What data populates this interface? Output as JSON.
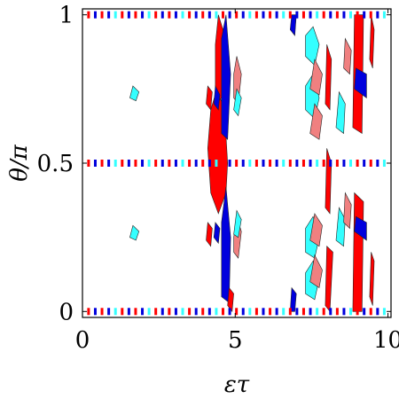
{
  "chart_data": {
    "type": "contour",
    "title": "",
    "xlabel": "ετ",
    "ylabel": "θ/π",
    "xlim": [
      0,
      10.1
    ],
    "ylim": [
      -0.02,
      1.02
    ],
    "x_ticks": [
      {
        "value": 0,
        "label": "0"
      },
      {
        "value": 5,
        "label": "5"
      },
      {
        "value": 10,
        "label": "10"
      }
    ],
    "y_ticks": [
      {
        "value": 0,
        "label": "0"
      },
      {
        "value": 0.5,
        "label": "0.5"
      },
      {
        "value": 1,
        "label": "1"
      }
    ],
    "grid": false,
    "legend": "none",
    "colors": {
      "red": "#ff0000",
      "blue": "#0000dd",
      "cyan": "#33ffff",
      "pink": "#f08080",
      "outline": "#222222"
    },
    "regions": [
      {
        "color": "red",
        "points": [
          [
            4.2,
            0.4
          ],
          [
            4.45,
            0.33
          ],
          [
            4.7,
            0.4
          ],
          [
            4.75,
            0.5
          ],
          [
            4.65,
            0.68
          ],
          [
            4.4,
            0.75
          ],
          [
            4.2,
            0.68
          ],
          [
            4.1,
            0.55
          ]
        ]
      },
      {
        "color": "red",
        "points": [
          [
            4.35,
            0.7
          ],
          [
            4.55,
            0.72
          ],
          [
            4.6,
            0.95
          ],
          [
            4.45,
            1.0
          ],
          [
            4.35,
            0.9
          ]
        ]
      },
      {
        "color": "blue",
        "points": [
          [
            4.55,
            0.05
          ],
          [
            4.8,
            0.03
          ],
          [
            4.85,
            0.25
          ],
          [
            4.7,
            0.42
          ],
          [
            4.55,
            0.3
          ]
        ]
      },
      {
        "color": "blue",
        "points": [
          [
            4.55,
            0.6
          ],
          [
            4.75,
            0.58
          ],
          [
            4.85,
            0.8
          ],
          [
            4.7,
            1.0
          ],
          [
            4.55,
            0.92
          ]
        ]
      },
      {
        "color": "red",
        "points": [
          [
            4.75,
            0.02
          ],
          [
            4.9,
            0.0
          ],
          [
            4.95,
            0.06
          ],
          [
            4.8,
            0.08
          ]
        ]
      },
      {
        "color": "pink",
        "points": [
          [
            4.95,
            0.72
          ],
          [
            5.1,
            0.7
          ],
          [
            5.2,
            0.8
          ],
          [
            5.05,
            0.86
          ],
          [
            4.95,
            0.8
          ]
        ]
      },
      {
        "color": "pink",
        "points": [
          [
            4.95,
            0.2
          ],
          [
            5.1,
            0.18
          ],
          [
            5.2,
            0.27
          ],
          [
            5.05,
            0.32
          ],
          [
            4.95,
            0.25
          ]
        ]
      },
      {
        "color": "cyan",
        "points": [
          [
            4.95,
            0.68
          ],
          [
            5.1,
            0.66
          ],
          [
            5.2,
            0.72
          ],
          [
            5.05,
            0.75
          ]
        ]
      },
      {
        "color": "cyan",
        "points": [
          [
            4.95,
            0.26
          ],
          [
            5.1,
            0.25
          ],
          [
            5.2,
            0.31
          ],
          [
            5.05,
            0.34
          ]
        ]
      },
      {
        "color": "red",
        "points": [
          [
            7.95,
            0.02
          ],
          [
            8.1,
            0.0
          ],
          [
            8.2,
            0.2
          ],
          [
            8.0,
            0.22
          ]
        ]
      },
      {
        "color": "red",
        "points": [
          [
            7.95,
            0.35
          ],
          [
            8.1,
            0.33
          ],
          [
            8.15,
            0.5
          ],
          [
            8.0,
            0.55
          ]
        ]
      },
      {
        "color": "red",
        "points": [
          [
            7.95,
            0.7
          ],
          [
            8.1,
            0.68
          ],
          [
            8.15,
            0.85
          ],
          [
            8.0,
            0.9
          ]
        ]
      },
      {
        "color": "cyan",
        "points": [
          [
            7.3,
            0.68
          ],
          [
            7.6,
            0.65
          ],
          [
            7.75,
            0.72
          ],
          [
            7.55,
            0.8
          ],
          [
            7.3,
            0.76
          ]
        ]
      },
      {
        "color": "cyan",
        "points": [
          [
            7.3,
            0.86
          ],
          [
            7.6,
            0.83
          ],
          [
            7.75,
            0.9
          ],
          [
            7.55,
            0.96
          ],
          [
            7.3,
            0.93
          ]
        ]
      },
      {
        "color": "cyan",
        "points": [
          [
            7.3,
            0.2
          ],
          [
            7.6,
            0.18
          ],
          [
            7.75,
            0.25
          ],
          [
            7.55,
            0.32
          ],
          [
            7.3,
            0.28
          ]
        ]
      },
      {
        "color": "cyan",
        "points": [
          [
            7.3,
            0.06
          ],
          [
            7.6,
            0.04
          ],
          [
            7.75,
            0.11
          ],
          [
            7.55,
            0.17
          ],
          [
            7.3,
            0.13
          ]
        ]
      },
      {
        "color": "pink",
        "points": [
          [
            7.45,
            0.6
          ],
          [
            7.75,
            0.58
          ],
          [
            7.85,
            0.66
          ],
          [
            7.6,
            0.7
          ]
        ]
      },
      {
        "color": "pink",
        "points": [
          [
            7.45,
            0.75
          ],
          [
            7.75,
            0.73
          ],
          [
            7.85,
            0.8
          ],
          [
            7.6,
            0.85
          ]
        ]
      },
      {
        "color": "pink",
        "points": [
          [
            7.45,
            0.24
          ],
          [
            7.75,
            0.22
          ],
          [
            7.85,
            0.29
          ],
          [
            7.6,
            0.33
          ]
        ]
      },
      {
        "color": "pink",
        "points": [
          [
            7.45,
            0.1
          ],
          [
            7.75,
            0.08
          ],
          [
            7.85,
            0.14
          ],
          [
            7.6,
            0.19
          ]
        ]
      },
      {
        "color": "cyan",
        "points": [
          [
            8.3,
            0.62
          ],
          [
            8.55,
            0.6
          ],
          [
            8.6,
            0.7
          ],
          [
            8.4,
            0.74
          ]
        ]
      },
      {
        "color": "cyan",
        "points": [
          [
            8.3,
            0.24
          ],
          [
            8.55,
            0.22
          ],
          [
            8.6,
            0.31
          ],
          [
            8.4,
            0.35
          ]
        ]
      },
      {
        "color": "pink",
        "points": [
          [
            8.55,
            0.82
          ],
          [
            8.75,
            0.8
          ],
          [
            8.8,
            0.88
          ],
          [
            8.6,
            0.92
          ]
        ]
      },
      {
        "color": "pink",
        "points": [
          [
            8.55,
            0.3
          ],
          [
            8.75,
            0.28
          ],
          [
            8.8,
            0.36
          ],
          [
            8.6,
            0.4
          ]
        ]
      },
      {
        "color": "red",
        "points": [
          [
            8.85,
            0.62
          ],
          [
            9.15,
            0.6
          ],
          [
            9.2,
            1.0
          ],
          [
            8.9,
            1.0
          ]
        ]
      },
      {
        "color": "red",
        "points": [
          [
            8.85,
            0.0
          ],
          [
            9.15,
            0.0
          ],
          [
            9.2,
            0.37
          ],
          [
            8.9,
            0.4
          ]
        ]
      },
      {
        "color": "red",
        "points": [
          [
            9.4,
            0.85
          ],
          [
            9.5,
            0.82
          ],
          [
            9.55,
            0.95
          ],
          [
            9.45,
            1.0
          ]
        ]
      },
      {
        "color": "red",
        "points": [
          [
            9.4,
            0.05
          ],
          [
            9.5,
            0.02
          ],
          [
            9.55,
            0.17
          ],
          [
            9.45,
            0.2
          ]
        ]
      },
      {
        "color": "blue",
        "points": [
          [
            8.9,
            0.75
          ],
          [
            9.3,
            0.72
          ],
          [
            9.3,
            0.8
          ],
          [
            8.95,
            0.82
          ]
        ]
      },
      {
        "color": "blue",
        "points": [
          [
            8.9,
            0.27
          ],
          [
            9.3,
            0.24
          ],
          [
            9.3,
            0.3
          ],
          [
            8.95,
            0.32
          ]
        ]
      },
      {
        "color": "cyan",
        "points": [
          [
            1.55,
            0.72
          ],
          [
            1.75,
            0.71
          ],
          [
            1.85,
            0.74
          ],
          [
            1.65,
            0.76
          ]
        ]
      },
      {
        "color": "cyan",
        "points": [
          [
            1.55,
            0.25
          ],
          [
            1.75,
            0.24
          ],
          [
            1.85,
            0.27
          ],
          [
            1.65,
            0.29
          ]
        ]
      },
      {
        "color": "blue",
        "points": [
          [
            4.3,
            0.25
          ],
          [
            4.45,
            0.23
          ],
          [
            4.5,
            0.28
          ],
          [
            4.35,
            0.3
          ]
        ]
      },
      {
        "color": "blue",
        "points": [
          [
            4.3,
            0.7
          ],
          [
            4.45,
            0.68
          ],
          [
            4.5,
            0.73
          ],
          [
            4.35,
            0.76
          ]
        ]
      },
      {
        "color": "red",
        "points": [
          [
            4.05,
            0.24
          ],
          [
            4.2,
            0.22
          ],
          [
            4.25,
            0.28
          ],
          [
            4.1,
            0.3
          ]
        ]
      },
      {
        "color": "red",
        "points": [
          [
            4.05,
            0.7
          ],
          [
            4.2,
            0.68
          ],
          [
            4.25,
            0.74
          ],
          [
            4.1,
            0.76
          ]
        ]
      },
      {
        "color": "blue",
        "points": [
          [
            6.8,
            0.95
          ],
          [
            6.95,
            0.93
          ],
          [
            7.0,
            1.0
          ],
          [
            6.85,
            1.0
          ]
        ]
      },
      {
        "color": "blue",
        "points": [
          [
            6.8,
            0.0
          ],
          [
            6.95,
            0.0
          ],
          [
            7.0,
            0.06
          ],
          [
            6.85,
            0.08
          ]
        ]
      }
    ],
    "row_dashes": [
      {
        "y": 0.0,
        "x_from": 0.2,
        "x_to": 10.0,
        "step": 0.22
      },
      {
        "y": 0.5,
        "x_from": 0.2,
        "x_to": 10.0,
        "step": 0.22
      },
      {
        "y": 1.0,
        "x_from": 0.2,
        "x_to": 10.0,
        "step": 0.22
      }
    ]
  }
}
